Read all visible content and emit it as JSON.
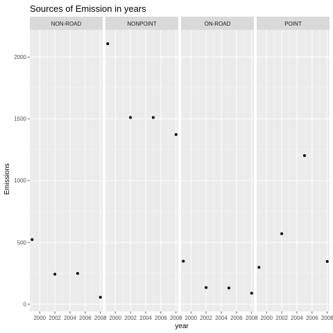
{
  "chart_data": {
    "type": "scatter",
    "title": "Sources of Emission in years",
    "xlabel": "year",
    "ylabel": "Emissions",
    "xlim": [
      1998.7,
      2008.3
    ],
    "ylim": [
      -60,
      2220
    ],
    "x_ticks": [
      2000,
      2002,
      2004,
      2006,
      2008
    ],
    "y_ticks": [
      0,
      500,
      1000,
      1500,
      2000
    ],
    "grid": true,
    "facets": [
      {
        "name": "NON-ROAD",
        "x": [
          1999,
          2002,
          2005,
          2008
        ],
        "y": [
          522,
          242,
          248,
          55
        ]
      },
      {
        "name": "NONPOINT",
        "x": [
          1999,
          2002,
          2005,
          2008
        ],
        "y": [
          2108,
          1510,
          1510,
          1373
        ]
      },
      {
        "name": "ON-ROAD",
        "x": [
          1999,
          2002,
          2005,
          2008
        ],
        "y": [
          347,
          134,
          130,
          88
        ]
      },
      {
        "name": "POINT",
        "x": [
          1999,
          2002,
          2005,
          2008
        ],
        "y": [
          297,
          570,
          1202,
          345
        ]
      }
    ]
  }
}
